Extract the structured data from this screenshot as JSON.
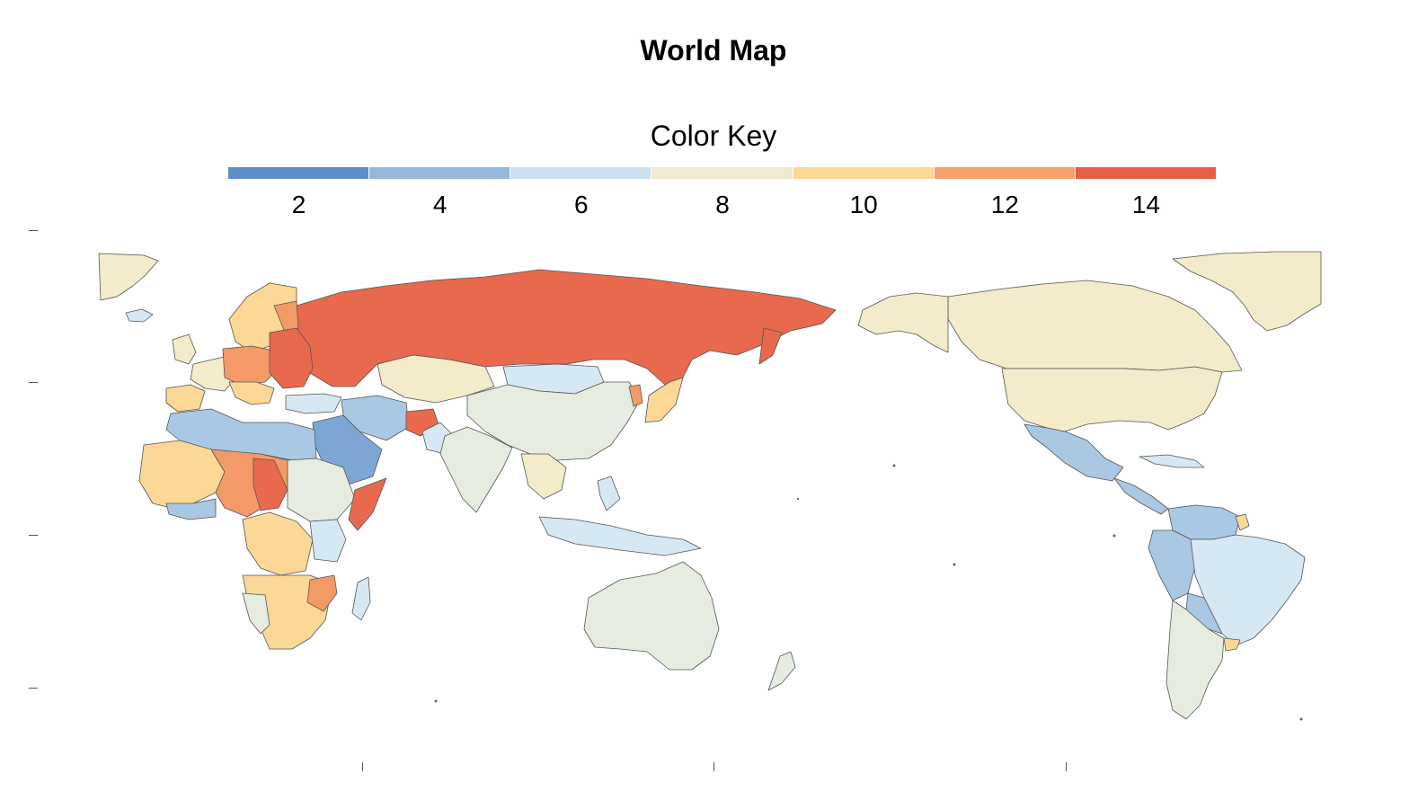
{
  "title": "World Map",
  "legend": {
    "title": "Color Key",
    "colors": [
      "#5e8ec8",
      "#93b8dc",
      "#cce0ef",
      "#f0ead0",
      "#fbd896",
      "#f6a16c",
      "#e5604a"
    ],
    "labels": [
      "2",
      "4",
      "6",
      "8",
      "10",
      "12",
      "14"
    ]
  },
  "palette": {
    "ocean": "#ffffff",
    "border": "#555555",
    "v2": "#7ea6d4",
    "v4": "#a9c8e4",
    "v6": "#d6e8f3",
    "v7": "#e6ecdf",
    "v8": "#f3ebc9",
    "v10": "#fbd896",
    "v12": "#f49a66",
    "v14": "#e8694d"
  }
}
